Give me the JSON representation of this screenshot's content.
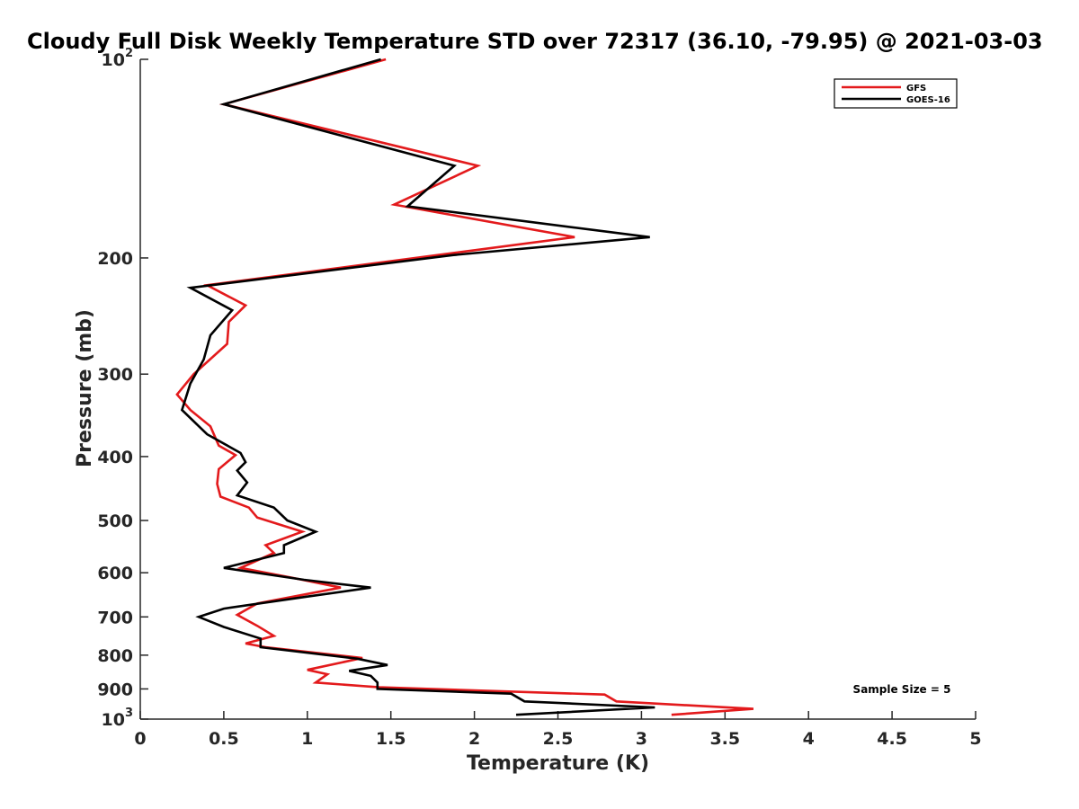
{
  "chart_data": {
    "type": "line",
    "title": "Cloudy Full Disk Weekly Temperature STD over 72317 (36.10, -79.95) @ 2021-03-03",
    "xlabel": "Temperature (K)",
    "ylabel": "Pressure (mb)",
    "xlim": [
      0,
      5
    ],
    "ylim": [
      100,
      1000
    ],
    "y_scale": "log",
    "y_reversed": true,
    "grid": false,
    "legend_position": "top-right",
    "x_ticks": [
      {
        "value": 0,
        "label": "0"
      },
      {
        "value": 0.5,
        "label": "0.5"
      },
      {
        "value": 1,
        "label": "1"
      },
      {
        "value": 1.5,
        "label": "1.5"
      },
      {
        "value": 2,
        "label": "2"
      },
      {
        "value": 2.5,
        "label": "2.5"
      },
      {
        "value": 3,
        "label": "3"
      },
      {
        "value": 3.5,
        "label": "3.5"
      },
      {
        "value": 4,
        "label": "4"
      },
      {
        "value": 4.5,
        "label": "4.5"
      },
      {
        "value": 5,
        "label": "5"
      }
    ],
    "y_ticks": [
      {
        "value": 100,
        "label": "10",
        "exp": "2"
      },
      {
        "value": 200,
        "label": "200",
        "exp": ""
      },
      {
        "value": 300,
        "label": "300",
        "exp": ""
      },
      {
        "value": 400,
        "label": "400",
        "exp": ""
      },
      {
        "value": 500,
        "label": "500",
        "exp": ""
      },
      {
        "value": 600,
        "label": "600",
        "exp": ""
      },
      {
        "value": 700,
        "label": "700",
        "exp": ""
      },
      {
        "value": 800,
        "label": "800",
        "exp": ""
      },
      {
        "value": 900,
        "label": "900",
        "exp": ""
      },
      {
        "value": 1000,
        "label": "10",
        "exp": "3"
      }
    ],
    "series": [
      {
        "name": "GFS",
        "color": "#e31a1c",
        "points": [
          [
            1.47,
            100
          ],
          [
            0.5,
            117
          ],
          [
            2.02,
            145
          ],
          [
            1.52,
            166
          ],
          [
            2.6,
            186
          ],
          [
            0.4,
            220
          ],
          [
            0.63,
            236
          ],
          [
            0.53,
            250
          ],
          [
            0.52,
            270
          ],
          [
            0.32,
            300
          ],
          [
            0.22,
            322
          ],
          [
            0.3,
            340
          ],
          [
            0.42,
            360
          ],
          [
            0.47,
            385
          ],
          [
            0.57,
            398
          ],
          [
            0.47,
            418
          ],
          [
            0.46,
            440
          ],
          [
            0.48,
            460
          ],
          [
            0.65,
            478
          ],
          [
            0.7,
            495
          ],
          [
            0.97,
            520
          ],
          [
            0.75,
            545
          ],
          [
            0.8,
            560
          ],
          [
            0.6,
            590
          ],
          [
            0.9,
            610
          ],
          [
            1.2,
            632
          ],
          [
            0.7,
            668
          ],
          [
            0.58,
            695
          ],
          [
            0.7,
            722
          ],
          [
            0.8,
            748
          ],
          [
            0.63,
            768
          ],
          [
            0.75,
            778
          ],
          [
            1.33,
            808
          ],
          [
            1.0,
            842
          ],
          [
            1.12,
            855
          ],
          [
            1.05,
            880
          ],
          [
            1.43,
            895
          ],
          [
            2.78,
            918
          ],
          [
            2.85,
            940
          ],
          [
            3.67,
            965
          ],
          [
            3.18,
            985
          ]
        ]
      },
      {
        "name": "GOES-16",
        "color": "#000000",
        "points": [
          [
            1.44,
            100
          ],
          [
            0.5,
            117
          ],
          [
            1.88,
            145
          ],
          [
            1.6,
            167
          ],
          [
            3.05,
            186
          ],
          [
            1.87,
            198
          ],
          [
            0.3,
            222
          ],
          [
            0.55,
            240
          ],
          [
            0.42,
            262
          ],
          [
            0.38,
            285
          ],
          [
            0.3,
            310
          ],
          [
            0.25,
            340
          ],
          [
            0.4,
            370
          ],
          [
            0.6,
            395
          ],
          [
            0.63,
            408
          ],
          [
            0.58,
            420
          ],
          [
            0.64,
            438
          ],
          [
            0.58,
            458
          ],
          [
            0.8,
            478
          ],
          [
            0.88,
            500
          ],
          [
            1.05,
            520
          ],
          [
            0.86,
            545
          ],
          [
            0.86,
            560
          ],
          [
            0.5,
            590
          ],
          [
            0.98,
            615
          ],
          [
            1.38,
            632
          ],
          [
            1.0,
            652
          ],
          [
            0.5,
            680
          ],
          [
            0.35,
            700
          ],
          [
            0.5,
            725
          ],
          [
            0.72,
            755
          ],
          [
            0.72,
            778
          ],
          [
            1.3,
            810
          ],
          [
            1.48,
            828
          ],
          [
            1.25,
            845
          ],
          [
            1.38,
            860
          ],
          [
            1.42,
            880
          ],
          [
            1.42,
            900
          ],
          [
            2.22,
            915
          ],
          [
            2.3,
            940
          ],
          [
            3.08,
            960
          ],
          [
            2.25,
            985
          ]
        ]
      }
    ],
    "annotations": [
      {
        "text": "Sample Size = 5",
        "position": "bottom-right"
      }
    ]
  }
}
